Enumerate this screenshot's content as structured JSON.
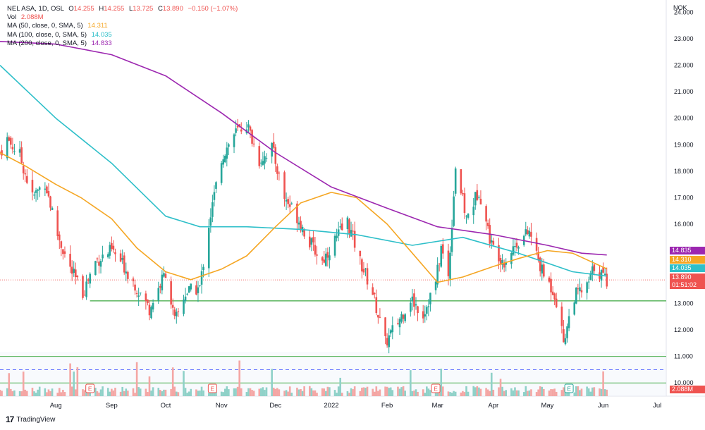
{
  "legend": {
    "symbol": "NEL ASA, 1D, OSL",
    "ohlc": {
      "o_key": "O",
      "o": "14.255",
      "h_key": "H",
      "h": "14.255",
      "l_key": "L",
      "l": "13.725",
      "c_key": "C",
      "c": "13.890"
    },
    "change": "−0.150 (−1.07%)",
    "vol_label": "Vol",
    "vol_value": "2.088M",
    "ma50_label": "MA (50, close, 0, SMA, 5)",
    "ma50_value": "14.311",
    "ma100_label": "MA (100, close, 0, SMA, 5)",
    "ma100_value": "14.035",
    "ma200_label": "MA (200, close, 0, SMA, 5)",
    "ma200_value": "14.833"
  },
  "colors": {
    "up": "#26a69a",
    "down": "#ef5350",
    "vol_up": "#8fd1c8",
    "vol_down": "#f4a6a4",
    "ma50": "#f5a623",
    "ma100": "#2ebfc9",
    "ma200": "#9c27b0",
    "hline": "#4caf50",
    "dashline": "#5b6cff",
    "text": "#131722"
  },
  "price_tags": {
    "ma200": "14.835",
    "ma50": "14.310",
    "ma100": "14.035",
    "last": "13.890",
    "countdown": "01:51:02",
    "volume": "2.088M"
  },
  "footer": {
    "brand": "TradingView"
  },
  "chart_data": {
    "type": "candlestick",
    "currency": "NOK",
    "ylim": [
      9.5,
      24.2
    ],
    "y_ticks": [
      "24.000",
      "23.000",
      "22.000",
      "21.000",
      "20.000",
      "19.000",
      "18.000",
      "17.000",
      "16.000",
      "15.000",
      "14.000",
      "13.000",
      "12.000",
      "11.000",
      "10.000"
    ],
    "x_ticks": [
      "Aug",
      "Sep",
      "Oct",
      "Nov",
      "Dec",
      "2022",
      "Feb",
      "Mar",
      "Apr",
      "May",
      "Jun",
      "Jul"
    ],
    "x_tick_dates": [
      "2021-08-01",
      "2021-09-01",
      "2021-10-01",
      "2021-11-01",
      "2021-12-01",
      "2022-01-01",
      "2022-02-01",
      "2022-03-01",
      "2022-04-01",
      "2022-05-01",
      "2022-06-01",
      "2022-07-01"
    ],
    "x_range": [
      "2021-07-01",
      "2022-07-06"
    ],
    "close_path": [
      {
        "date": "2021-07-01",
        "close": 18.7
      },
      {
        "date": "2021-07-05",
        "close": 19.2
      },
      {
        "date": "2021-07-12",
        "close": 18.6
      },
      {
        "date": "2021-07-19",
        "close": 17.0
      },
      {
        "date": "2021-07-26",
        "close": 17.6
      },
      {
        "date": "2021-08-02",
        "close": 15.6
      },
      {
        "date": "2021-08-09",
        "close": 14.3
      },
      {
        "date": "2021-08-16",
        "close": 13.4
      },
      {
        "date": "2021-08-23",
        "close": 14.6
      },
      {
        "date": "2021-09-01",
        "close": 15.0
      },
      {
        "date": "2021-09-08",
        "close": 14.4
      },
      {
        "date": "2021-09-15",
        "close": 13.6
      },
      {
        "date": "2021-09-22",
        "close": 12.8
      },
      {
        "date": "2021-10-01",
        "close": 14.2
      },
      {
        "date": "2021-10-06",
        "close": 12.3
      },
      {
        "date": "2021-10-12",
        "close": 13.4
      },
      {
        "date": "2021-10-20",
        "close": 13.6
      },
      {
        "date": "2021-10-25",
        "close": 16.0
      },
      {
        "date": "2021-11-01",
        "close": 18.5
      },
      {
        "date": "2021-11-08",
        "close": 19.4
      },
      {
        "date": "2021-11-15",
        "close": 19.8
      },
      {
        "date": "2021-11-22",
        "close": 18.4
      },
      {
        "date": "2021-11-29",
        "close": 18.9
      },
      {
        "date": "2021-12-06",
        "close": 17.0
      },
      {
        "date": "2021-12-13",
        "close": 16.3
      },
      {
        "date": "2021-12-20",
        "close": 15.3
      },
      {
        "date": "2021-12-27",
        "close": 14.6
      },
      {
        "date": "2022-01-03",
        "close": 15.4
      },
      {
        "date": "2022-01-10",
        "close": 16.1
      },
      {
        "date": "2022-01-17",
        "close": 14.6
      },
      {
        "date": "2022-01-24",
        "close": 13.4
      },
      {
        "date": "2022-01-31",
        "close": 11.5
      },
      {
        "date": "2022-02-07",
        "close": 12.3
      },
      {
        "date": "2022-02-14",
        "close": 13.2
      },
      {
        "date": "2022-02-21",
        "close": 12.6
      },
      {
        "date": "2022-02-28",
        "close": 13.8
      },
      {
        "date": "2022-03-03",
        "close": 15.1
      },
      {
        "date": "2022-03-07",
        "close": 14.0
      },
      {
        "date": "2022-03-11",
        "close": 18.2
      },
      {
        "date": "2022-03-17",
        "close": 16.2
      },
      {
        "date": "2022-03-24",
        "close": 17.3
      },
      {
        "date": "2022-03-31",
        "close": 15.2
      },
      {
        "date": "2022-04-07",
        "close": 14.6
      },
      {
        "date": "2022-04-14",
        "close": 15.3
      },
      {
        "date": "2022-04-21",
        "close": 15.7
      },
      {
        "date": "2022-04-28",
        "close": 14.2
      },
      {
        "date": "2022-05-05",
        "close": 13.4
      },
      {
        "date": "2022-05-10",
        "close": 11.6
      },
      {
        "date": "2022-05-16",
        "close": 13.3
      },
      {
        "date": "2022-05-23",
        "close": 13.6
      },
      {
        "date": "2022-05-27",
        "close": 14.4
      },
      {
        "date": "2022-06-03",
        "close": 13.89
      }
    ],
    "ma50": [
      {
        "date": "2021-07-01",
        "value": 18.7
      },
      {
        "date": "2021-07-15",
        "value": 18.2
      },
      {
        "date": "2021-08-01",
        "value": 17.5
      },
      {
        "date": "2021-08-15",
        "value": 17.0
      },
      {
        "date": "2021-09-01",
        "value": 16.2
      },
      {
        "date": "2021-09-15",
        "value": 15.1
      },
      {
        "date": "2021-10-01",
        "value": 14.2
      },
      {
        "date": "2021-10-15",
        "value": 13.9
      },
      {
        "date": "2021-11-01",
        "value": 14.3
      },
      {
        "date": "2021-11-15",
        "value": 14.8
      },
      {
        "date": "2021-12-01",
        "value": 15.9
      },
      {
        "date": "2021-12-15",
        "value": 16.8
      },
      {
        "date": "2022-01-01",
        "value": 17.2
      },
      {
        "date": "2022-01-15",
        "value": 17.0
      },
      {
        "date": "2022-02-01",
        "value": 16.0
      },
      {
        "date": "2022-02-15",
        "value": 14.9
      },
      {
        "date": "2022-03-01",
        "value": 13.8
      },
      {
        "date": "2022-03-15",
        "value": 14.0
      },
      {
        "date": "2022-04-01",
        "value": 14.4
      },
      {
        "date": "2022-04-15",
        "value": 14.7
      },
      {
        "date": "2022-05-01",
        "value": 15.0
      },
      {
        "date": "2022-05-15",
        "value": 14.9
      },
      {
        "date": "2022-06-03",
        "value": 14.31
      }
    ],
    "ma100": [
      {
        "date": "2021-07-01",
        "value": 22.0
      },
      {
        "date": "2021-08-01",
        "value": 20.0
      },
      {
        "date": "2021-09-01",
        "value": 18.3
      },
      {
        "date": "2021-10-01",
        "value": 16.3
      },
      {
        "date": "2021-10-20",
        "value": 15.9
      },
      {
        "date": "2021-11-15",
        "value": 15.9
      },
      {
        "date": "2021-12-15",
        "value": 15.8
      },
      {
        "date": "2022-01-15",
        "value": 15.6
      },
      {
        "date": "2022-02-15",
        "value": 15.2
      },
      {
        "date": "2022-03-15",
        "value": 15.5
      },
      {
        "date": "2022-04-15",
        "value": 14.9
      },
      {
        "date": "2022-05-15",
        "value": 14.2
      },
      {
        "date": "2022-06-03",
        "value": 14.035
      }
    ],
    "ma200": [
      {
        "date": "2021-07-01",
        "value": 22.9
      },
      {
        "date": "2021-08-01",
        "value": 22.8
      },
      {
        "date": "2021-09-01",
        "value": 22.4
      },
      {
        "date": "2021-10-01",
        "value": 21.6
      },
      {
        "date": "2021-11-01",
        "value": 20.2
      },
      {
        "date": "2021-12-01",
        "value": 18.7
      },
      {
        "date": "2022-01-01",
        "value": 17.4
      },
      {
        "date": "2022-02-01",
        "value": 16.6
      },
      {
        "date": "2022-03-01",
        "value": 15.9
      },
      {
        "date": "2022-04-01",
        "value": 15.6
      },
      {
        "date": "2022-05-01",
        "value": 15.2
      },
      {
        "date": "2022-05-20",
        "value": 14.9
      },
      {
        "date": "2022-06-03",
        "value": 14.835
      }
    ],
    "horizontal_levels": [
      13.1,
      11.0,
      10.0
    ],
    "dashed_level": 10.5,
    "last_price": 13.89,
    "earnings_dates": [
      "2021-08-20",
      "2021-10-27",
      "2022-02-28",
      "2022-05-13"
    ],
    "earnings_label": "E"
  }
}
